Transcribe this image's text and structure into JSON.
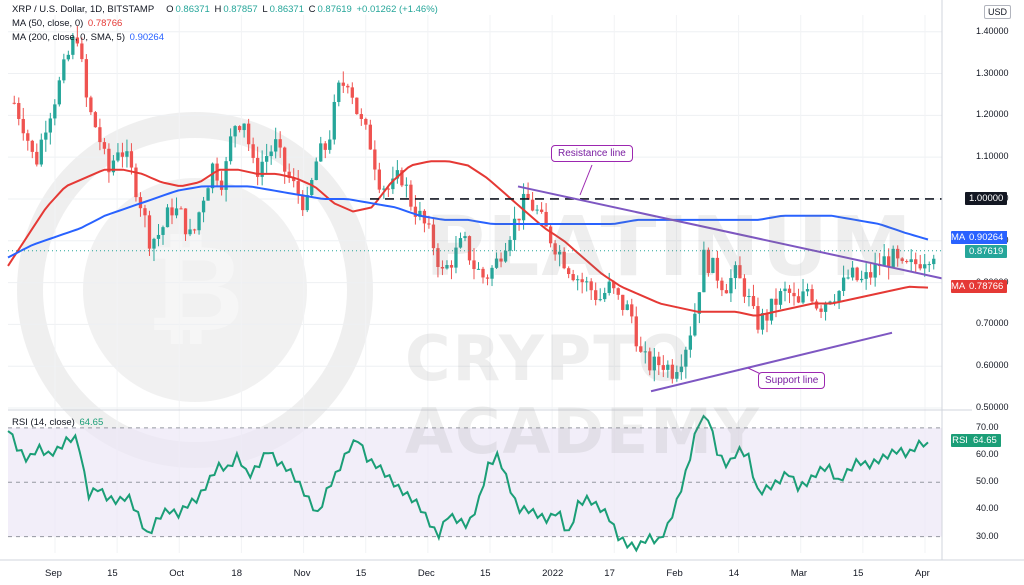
{
  "header": {
    "symbol": "XRP / U.S. Dollar, 1D, BITSTAMP",
    "o_label": "O",
    "o_value": "0.86371",
    "h_label": "H",
    "h_value": "0.87857",
    "l_label": "L",
    "l_value": "0.86371",
    "c_label": "C",
    "c_value": "0.87619",
    "change": "+0.01262 (+1.46%)",
    "ma50_label": "MA (50, close, 0)",
    "ma50_value": "0.78766",
    "ma200_label": "MA (200, close, 0, SMA, 5)",
    "ma200_value": "0.90264"
  },
  "currency_button": "USD",
  "price_tags": {
    "ma200": {
      "label": "MA",
      "value": "0.90264"
    },
    "last": {
      "value": "0.87619"
    },
    "ma50": {
      "label": "MA",
      "value": "0.78766"
    },
    "level": {
      "value": "1.00000"
    }
  },
  "rsi": {
    "legend_label": "RSI (14, close)",
    "legend_value": "64.65",
    "tag_label": "RSI",
    "tag_value": "64.65"
  },
  "annotations": {
    "resistance": "Resistance line",
    "support": "Support line"
  },
  "watermark": {
    "line1": "PLATINUM",
    "line2": "CRYPTO ACADEMY"
  },
  "colors": {
    "up": "#26a69a",
    "down": "#ef5350",
    "ma50": "#e53935",
    "ma200": "#2962ff",
    "rsi": "#1b9e77",
    "trendline": "#7e57c2",
    "rsi_band": "#ede7f6"
  },
  "chart_data": [
    {
      "type": "candlestick",
      "title": "XRP / U.S. Dollar, 1D, BITSTAMP",
      "x_ticks": [
        "Sep",
        "15",
        "Oct",
        "18",
        "Nov",
        "15",
        "Dec",
        "15",
        "2022",
        "17",
        "Feb",
        "14",
        "Mar",
        "15",
        "Apr"
      ],
      "y_ticks": [
        0.5,
        0.6,
        0.7,
        0.8,
        0.9,
        1.0,
        1.1,
        1.2,
        1.3,
        1.4
      ],
      "y_tick_labels": [
        "0.50000",
        "0.60000",
        "0.70000",
        "0.80000",
        "0.90000",
        "1.00000",
        "1.10000",
        "1.20000",
        "1.30000",
        "1.40000"
      ],
      "ylim": [
        0.5,
        1.44
      ],
      "close_path": [
        1.23,
        1.17,
        1.08,
        1.18,
        1.25,
        1.33,
        1.4,
        1.22,
        1.16,
        1.06,
        1.13,
        1.08,
        1.0,
        0.9,
        0.92,
        0.98,
        0.96,
        0.9,
        1.0,
        1.08,
        1.04,
        1.18,
        1.19,
        1.06,
        1.1,
        1.13,
        1.06,
        1.02,
        0.98,
        1.1,
        1.13,
        1.26,
        1.29,
        1.19,
        1.14,
        1.04,
        1.02,
        1.06,
        0.99,
        0.95,
        0.9,
        0.82,
        0.86,
        0.9,
        0.84,
        0.81,
        0.84,
        0.9,
        0.95,
        1.0,
        0.97,
        0.92,
        0.88,
        0.84,
        0.81,
        0.79,
        0.76,
        0.79,
        0.75,
        0.73,
        0.62,
        0.6,
        0.61,
        0.59,
        0.63,
        0.71,
        0.86,
        0.83,
        0.79,
        0.82,
        0.78,
        0.7,
        0.72,
        0.76,
        0.78,
        0.74,
        0.79,
        0.74,
        0.77,
        0.78,
        0.82,
        0.8,
        0.82,
        0.85,
        0.86,
        0.83,
        0.84,
        0.86,
        0.876
      ],
      "series": [
        {
          "name": "MA (50, close, 0)",
          "values_path": [
            0.84,
            0.91,
            0.98,
            1.03,
            1.05,
            1.07,
            1.07,
            1.06,
            1.04,
            1.03,
            1.04,
            1.07,
            1.07,
            1.06,
            1.06,
            1.05,
            1.03,
            0.99,
            0.97,
            0.98,
            1.04,
            1.08,
            1.09,
            1.09,
            1.08,
            1.05,
            1.01,
            0.97,
            0.93,
            0.9,
            0.86,
            0.82,
            0.79,
            0.77,
            0.75,
            0.74,
            0.73,
            0.73,
            0.73,
            0.72,
            0.73,
            0.74,
            0.75,
            0.75,
            0.76,
            0.77,
            0.78,
            0.79,
            0.788
          ]
        },
        {
          "name": "MA (200, close, 0, SMA, 5)",
          "values_path": [
            0.86,
            0.89,
            0.91,
            0.93,
            0.96,
            0.98,
            1.0,
            1.02,
            1.03,
            1.03,
            1.03,
            1.02,
            1.01,
            1.0,
            1.0,
            0.99,
            0.98,
            0.96,
            0.95,
            0.95,
            0.94,
            0.94,
            0.94,
            0.94,
            0.94,
            0.94,
            0.95,
            0.95,
            0.95,
            0.95,
            0.95,
            0.95,
            0.96,
            0.96,
            0.96,
            0.95,
            0.94,
            0.92,
            0.903
          ]
        }
      ],
      "horizontal_level": 1.0,
      "trendlines": [
        {
          "name": "Resistance line",
          "from": 1.03,
          "to": 0.81
        },
        {
          "name": "Support line",
          "from": 0.54,
          "to": 0.68
        }
      ]
    },
    {
      "type": "line",
      "title": "RSI (14, close)",
      "y_ticks": [
        30,
        40,
        50,
        60,
        70
      ],
      "y_tick_labels": [
        "30.00",
        "40.00",
        "50.00",
        "60.00",
        "70.00"
      ],
      "ylim": [
        24,
        74
      ],
      "band": [
        30,
        70
      ],
      "values": [
        70,
        62,
        58,
        63,
        60,
        62,
        66,
        66,
        45,
        48,
        44,
        43,
        45,
        38,
        30,
        37,
        40,
        38,
        42,
        44,
        50,
        56,
        55,
        60,
        52,
        56,
        62,
        57,
        55,
        50,
        44,
        38,
        48,
        54,
        62,
        66,
        58,
        56,
        52,
        48,
        45,
        42,
        36,
        30,
        38,
        36,
        34,
        42,
        56,
        60,
        50,
        40,
        40,
        38,
        36,
        40,
        30,
        42,
        44,
        41,
        38,
        30,
        27,
        26,
        30,
        28,
        34,
        44,
        56,
        72,
        74,
        60,
        56,
        62,
        60,
        46,
        48,
        50,
        54,
        48,
        50,
        54,
        56,
        50,
        54,
        58,
        56,
        58,
        60,
        62,
        60,
        64,
        64.65
      ]
    }
  ]
}
